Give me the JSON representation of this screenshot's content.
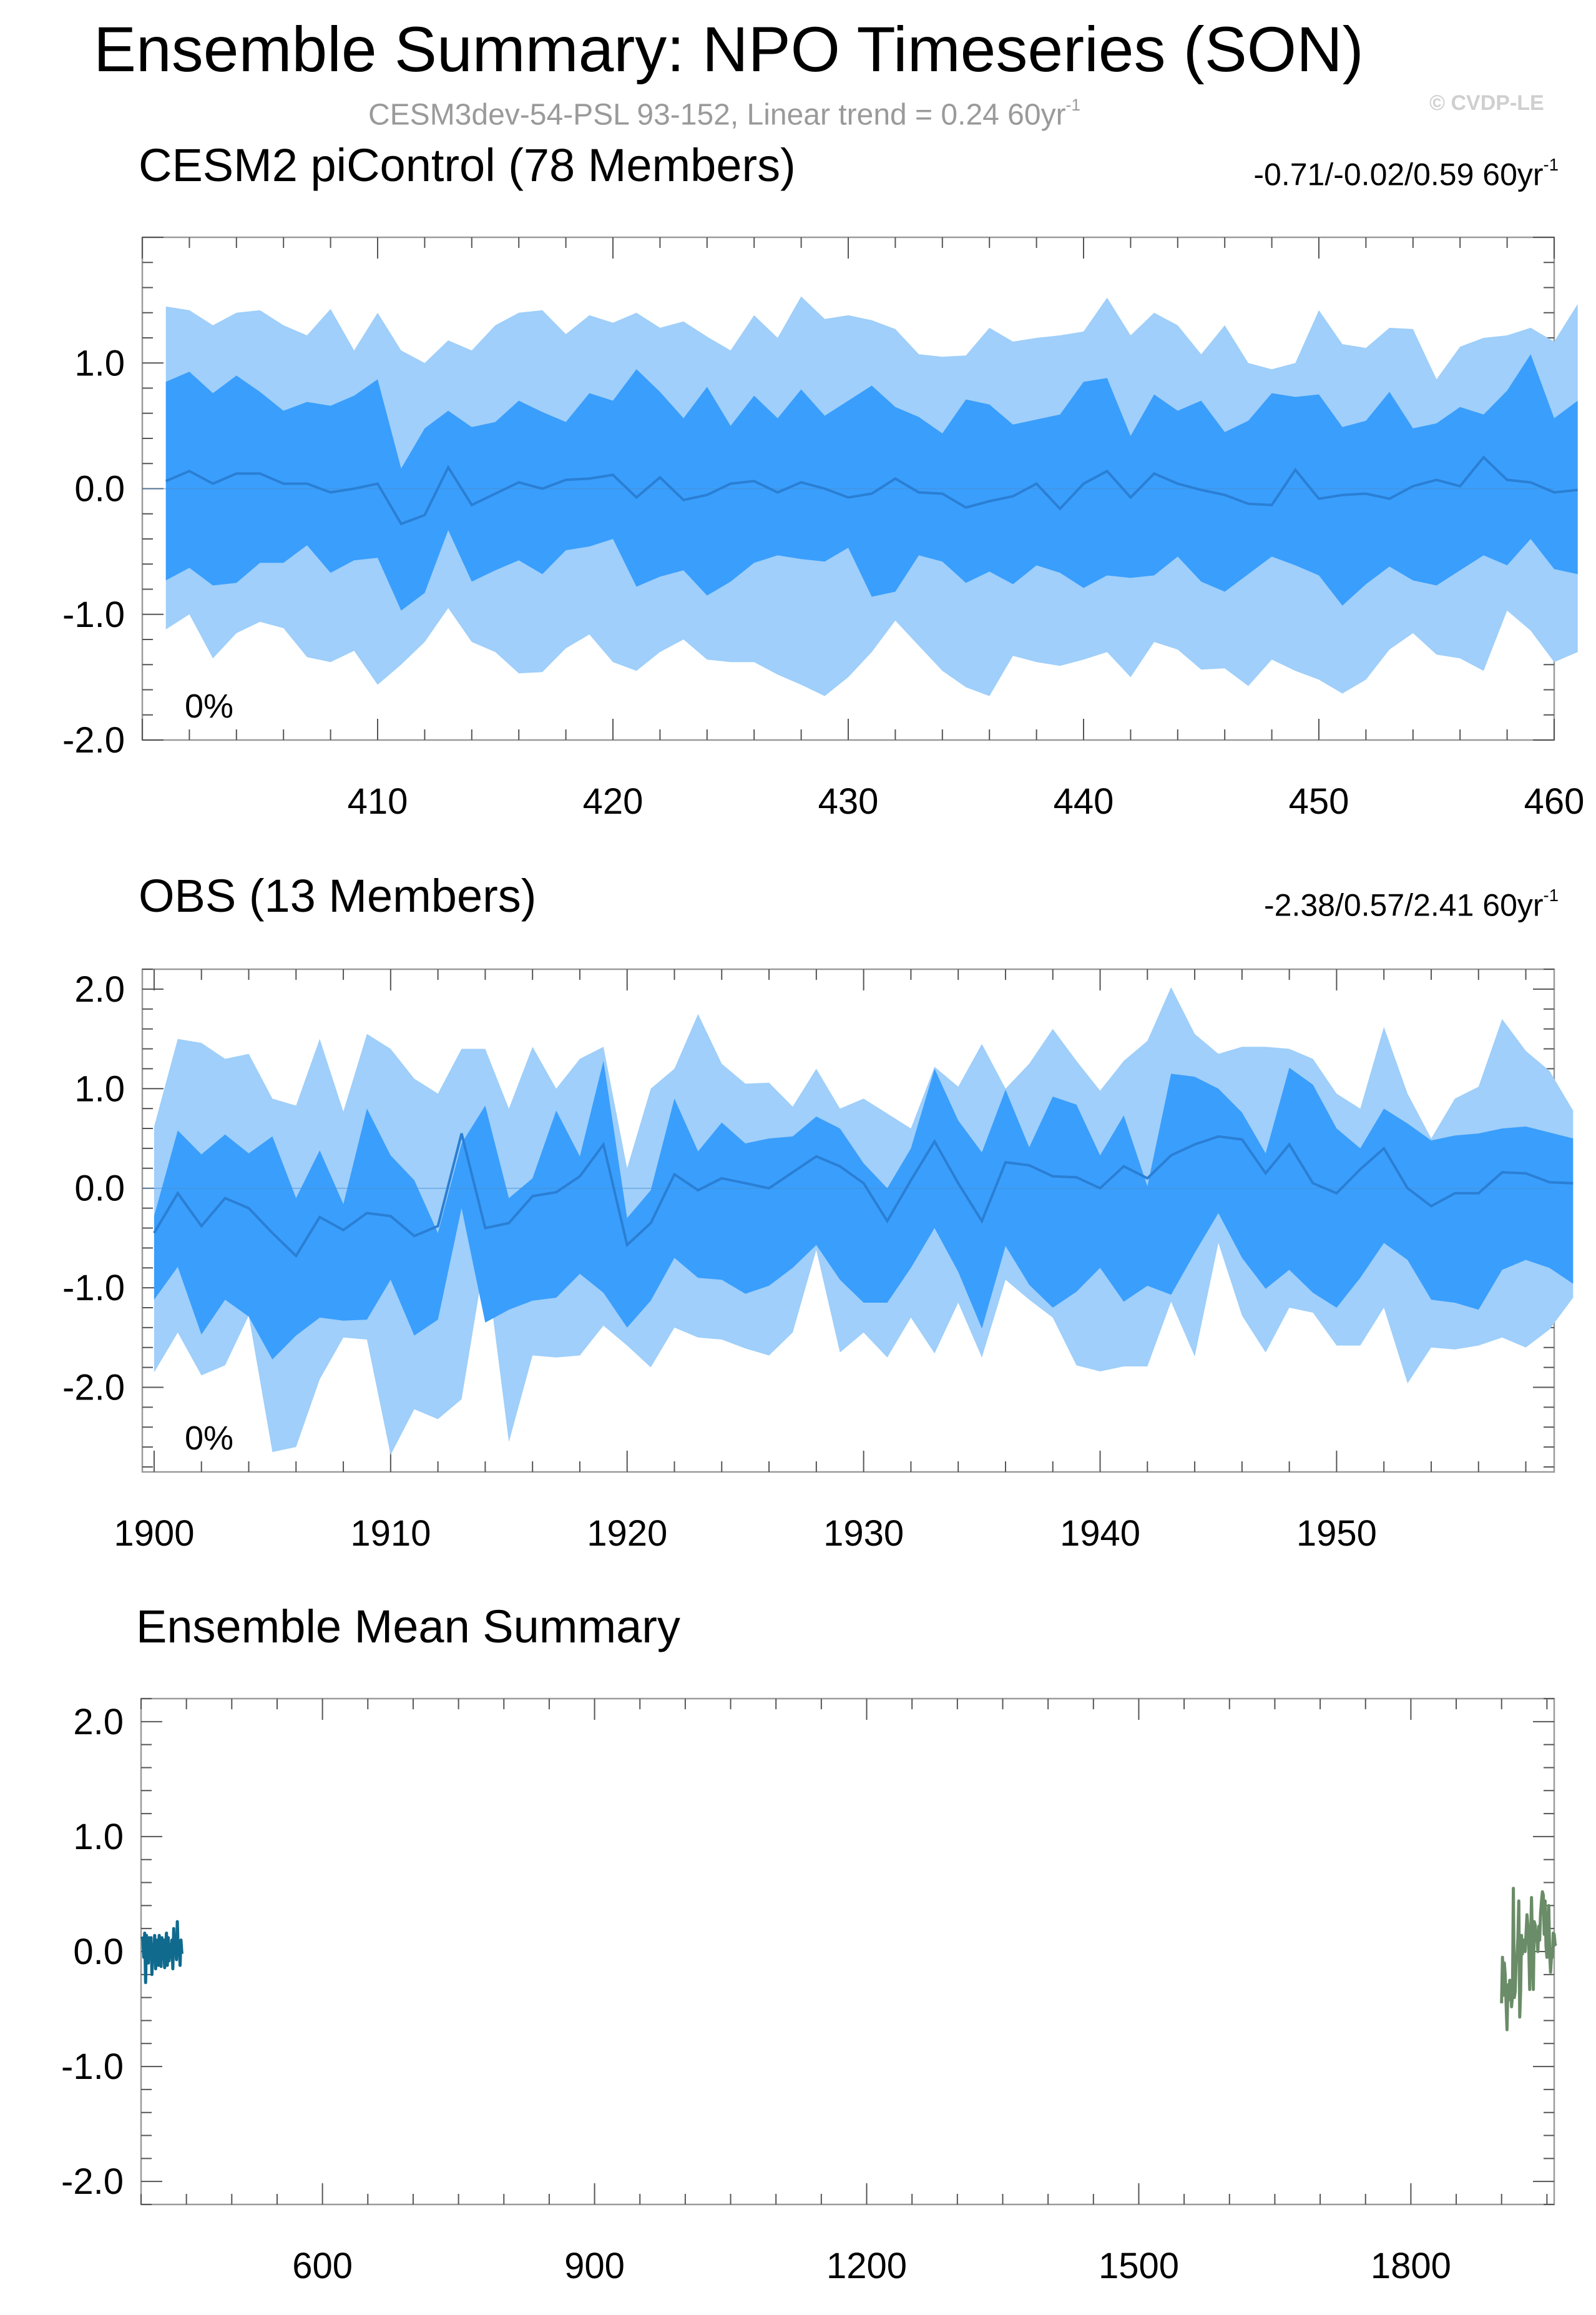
{
  "header": {
    "title": "Ensemble Summary: NPO Timeseries (SON)",
    "subtitle_main": "CESM3dev-54-PSL 93-152, Linear trend = 0.24 60yr",
    "subtitle_exp": "-1",
    "watermark": "© CVDP-LE"
  },
  "colors": {
    "outer_band": "#9fcffa",
    "inner_band": "#3a9efc",
    "median_line": "#2a7fd4",
    "cesm_series": "#0f6a8e",
    "obs_series": "#6a8c68",
    "frame": "#9a9a9a"
  },
  "chart_data": [
    {
      "id": "cesm2",
      "type": "area",
      "title": "CESM2 piControl (78 Members)",
      "title_color": "#0f6a8e",
      "stats_text": "-0.71/-0.02/0.59 60yr",
      "stats_exp": "-1",
      "percent_label": "0%",
      "xlim": [
        400,
        460
      ],
      "ylim": [
        -2.0,
        2.0
      ],
      "xticks": [
        410,
        420,
        430,
        440,
        450,
        460
      ],
      "yticks": [
        1.0,
        0.0,
        -1.0,
        -2.0
      ],
      "ytick_labels": [
        "1.0",
        "0.0",
        "-1.0",
        "-2.0"
      ],
      "x_start": 401,
      "outer_high": [
        1.45,
        1.42,
        1.3,
        1.4,
        1.42,
        1.3,
        1.22,
        1.43,
        1.1,
        1.4,
        1.1,
        1.0,
        1.18,
        1.1,
        1.3,
        1.4,
        1.42,
        1.23,
        1.38,
        1.32,
        1.4,
        1.28,
        1.33,
        1.21,
        1.1,
        1.38,
        1.2,
        1.53,
        1.35,
        1.38,
        1.34,
        1.27,
        1.07,
        1.05,
        1.06,
        1.28,
        1.17,
        1.2,
        1.22,
        1.25,
        1.52,
        1.22,
        1.4,
        1.3,
        1.07,
        1.3,
        1.0,
        0.95,
        1.0,
        1.42,
        1.15,
        1.12,
        1.28,
        1.27,
        0.87,
        1.13,
        1.2,
        1.22,
        1.28,
        1.17,
        1.47
      ],
      "inner_high": [
        0.85,
        0.93,
        0.76,
        0.9,
        0.77,
        0.62,
        0.69,
        0.66,
        0.74,
        0.87,
        0.16,
        0.48,
        0.62,
        0.49,
        0.53,
        0.7,
        0.61,
        0.53,
        0.76,
        0.7,
        0.95,
        0.77,
        0.56,
        0.81,
        0.5,
        0.74,
        0.56,
        0.79,
        0.58,
        0.7,
        0.82,
        0.65,
        0.57,
        0.44,
        0.71,
        0.67,
        0.51,
        0.55,
        0.59,
        0.85,
        0.88,
        0.42,
        0.75,
        0.62,
        0.7,
        0.45,
        0.54,
        0.76,
        0.73,
        0.75,
        0.49,
        0.54,
        0.77,
        0.48,
        0.52,
        0.65,
        0.59,
        0.78,
        1.07,
        0.56,
        0.7
      ],
      "median": [
        0.06,
        0.14,
        0.04,
        0.12,
        0.12,
        0.04,
        0.04,
        -0.03,
        0.0,
        0.04,
        -0.28,
        -0.21,
        0.17,
        -0.13,
        -0.04,
        0.05,
        0.0,
        0.07,
        0.08,
        0.11,
        -0.07,
        0.09,
        -0.09,
        -0.05,
        0.04,
        0.06,
        -0.03,
        0.05,
        0.0,
        -0.07,
        -0.04,
        0.08,
        -0.03,
        -0.04,
        -0.15,
        -0.1,
        -0.06,
        0.04,
        -0.16,
        0.04,
        0.14,
        -0.07,
        0.12,
        0.04,
        -0.01,
        -0.05,
        -0.12,
        -0.13,
        0.15,
        -0.08,
        -0.05,
        -0.04,
        -0.08,
        0.02,
        0.07,
        0.02,
        0.25,
        0.07,
        0.05,
        -0.03,
        -0.01
      ],
      "inner_low": [
        -0.73,
        -0.63,
        -0.77,
        -0.75,
        -0.59,
        -0.59,
        -0.45,
        -0.67,
        -0.57,
        -0.55,
        -0.97,
        -0.83,
        -0.33,
        -0.74,
        -0.65,
        -0.57,
        -0.68,
        -0.49,
        -0.46,
        -0.4,
        -0.78,
        -0.7,
        -0.65,
        -0.85,
        -0.74,
        -0.59,
        -0.53,
        -0.56,
        -0.58,
        -0.47,
        -0.86,
        -0.82,
        -0.53,
        -0.58,
        -0.75,
        -0.66,
        -0.76,
        -0.61,
        -0.67,
        -0.79,
        -0.69,
        -0.71,
        -0.69,
        -0.54,
        -0.74,
        -0.82,
        -0.68,
        -0.54,
        -0.61,
        -0.69,
        -0.93,
        -0.76,
        -0.62,
        -0.73,
        -0.77,
        -0.65,
        -0.53,
        -0.61,
        -0.4,
        -0.64,
        -0.68
      ],
      "outer_low": [
        -1.12,
        -1.0,
        -1.35,
        -1.15,
        -1.06,
        -1.11,
        -1.34,
        -1.38,
        -1.29,
        -1.56,
        -1.4,
        -1.22,
        -0.95,
        -1.22,
        -1.3,
        -1.47,
        -1.46,
        -1.27,
        -1.16,
        -1.38,
        -1.45,
        -1.3,
        -1.2,
        -1.36,
        -1.38,
        -1.38,
        -1.48,
        -1.56,
        -1.65,
        -1.5,
        -1.3,
        -1.05,
        -1.25,
        -1.45,
        -1.58,
        -1.65,
        -1.33,
        -1.38,
        -1.41,
        -1.36,
        -1.3,
        -1.5,
        -1.22,
        -1.28,
        -1.44,
        -1.43,
        -1.57,
        -1.36,
        -1.45,
        -1.52,
        -1.63,
        -1.52,
        -1.28,
        -1.15,
        -1.32,
        -1.35,
        -1.45,
        -0.97,
        -1.13,
        -1.38,
        -1.3
      ]
    },
    {
      "id": "obs",
      "type": "area",
      "title": "OBS (13 Members)",
      "title_color": "#6a8c68",
      "stats_text": "-2.38/0.57/2.41 60yr",
      "stats_exp": "-1",
      "percent_label": "0%",
      "xlim": [
        1899.5,
        1959.2
      ],
      "ylim": [
        -2.85,
        2.2
      ],
      "xticks": [
        1900,
        1910,
        1920,
        1930,
        1940,
        1950
      ],
      "yticks": [
        2.0,
        1.0,
        0.0,
        -1.0,
        -2.0
      ],
      "ytick_labels": [
        "2.0",
        "1.0",
        "0.0",
        "-1.0",
        "-2.0"
      ],
      "x_start": 1900,
      "outer_high": [
        0.62,
        1.5,
        1.46,
        1.3,
        1.35,
        0.9,
        0.83,
        1.5,
        0.77,
        1.55,
        1.4,
        1.1,
        0.95,
        1.4,
        1.4,
        0.8,
        1.42,
        1.0,
        1.3,
        1.42,
        0.2,
        1.0,
        1.2,
        1.75,
        1.25,
        1.05,
        1.06,
        0.82,
        1.2,
        0.8,
        0.9,
        0.75,
        0.6,
        1.22,
        1.02,
        1.45,
        1.0,
        1.25,
        1.6,
        1.28,
        0.98,
        1.28,
        1.48,
        2.02,
        1.55,
        1.35,
        1.42,
        1.42,
        1.4,
        1.3,
        0.95,
        0.8,
        1.62,
        0.95,
        0.5,
        0.9,
        1.02,
        1.7,
        1.38,
        1.18,
        0.78
      ],
      "inner_high": [
        -0.28,
        0.58,
        0.34,
        0.54,
        0.35,
        0.52,
        -0.1,
        0.38,
        -0.16,
        0.8,
        0.33,
        0.08,
        -0.45,
        0.45,
        0.83,
        -0.1,
        0.1,
        0.78,
        0.32,
        1.28,
        -0.3,
        -0.02,
        0.9,
        0.37,
        0.66,
        0.45,
        0.5,
        0.52,
        0.72,
        0.6,
        0.25,
        0.0,
        0.4,
        1.2,
        0.68,
        0.36,
        0.99,
        0.41,
        0.92,
        0.84,
        0.33,
        0.73,
        0.02,
        1.15,
        1.12,
        1.0,
        0.76,
        0.35,
        1.21,
        1.04,
        0.6,
        0.4,
        0.8,
        0.65,
        0.48,
        0.53,
        0.55,
        0.6,
        0.62,
        0.56,
        0.5
      ],
      "median": [
        -0.45,
        -0.05,
        -0.38,
        -0.1,
        -0.2,
        -0.45,
        -0.68,
        -0.29,
        -0.42,
        -0.25,
        -0.28,
        -0.48,
        -0.38,
        0.55,
        -0.4,
        -0.35,
        -0.08,
        -0.04,
        0.12,
        0.44,
        -0.57,
        -0.35,
        0.14,
        -0.02,
        0.1,
        0.05,
        0.0,
        0.16,
        0.32,
        0.22,
        0.05,
        -0.33,
        0.08,
        0.47,
        0.05,
        -0.33,
        0.26,
        0.23,
        0.12,
        0.11,
        0.0,
        0.22,
        0.1,
        0.33,
        0.44,
        0.52,
        0.49,
        0.15,
        0.44,
        0.05,
        -0.05,
        0.19,
        0.4,
        0.0,
        -0.18,
        -0.05,
        -0.05,
        0.16,
        0.15,
        0.06,
        0.05
      ],
      "inner_low": [
        -1.12,
        -0.79,
        -1.47,
        -1.12,
        -1.29,
        -1.72,
        -1.48,
        -1.3,
        -1.33,
        -1.32,
        -0.92,
        -1.48,
        -1.32,
        -0.2,
        -1.35,
        -1.22,
        -1.13,
        -1.1,
        -0.86,
        -1.05,
        -1.4,
        -1.13,
        -0.7,
        -0.9,
        -0.92,
        -1.06,
        -0.98,
        -0.8,
        -0.57,
        -0.92,
        -1.15,
        -1.15,
        -0.8,
        -0.4,
        -0.84,
        -1.41,
        -0.58,
        -0.97,
        -1.2,
        -1.04,
        -0.8,
        -1.14,
        -0.98,
        -1.07,
        -0.65,
        -0.25,
        -0.7,
        -1.01,
        -0.82,
        -1.05,
        -1.2,
        -0.9,
        -0.55,
        -0.72,
        -1.12,
        -1.15,
        -1.22,
        -0.82,
        -0.72,
        -0.8,
        -0.96
      ],
      "outer_low": [
        -1.85,
        -1.45,
        -1.88,
        -1.78,
        -1.28,
        -2.65,
        -2.6,
        -1.92,
        -1.5,
        -1.52,
        -2.68,
        -2.22,
        -2.32,
        -2.12,
        -0.68,
        -2.55,
        -1.68,
        -1.7,
        -1.68,
        -1.38,
        -1.58,
        -1.8,
        -1.4,
        -1.5,
        -1.52,
        -1.61,
        -1.68,
        -1.45,
        -0.62,
        -1.65,
        -1.45,
        -1.7,
        -1.3,
        -1.66,
        -1.15,
        -1.7,
        -0.92,
        -1.12,
        -1.3,
        -1.78,
        -1.84,
        -1.79,
        -1.79,
        -1.14,
        -1.69,
        -0.55,
        -1.28,
        -1.65,
        -1.2,
        -1.25,
        -1.58,
        -1.58,
        -1.2,
        -1.96,
        -1.6,
        -1.62,
        -1.58,
        -1.5,
        -1.6,
        -1.42,
        -1.1
      ]
    },
    {
      "id": "ensemble-mean",
      "type": "line",
      "title": "Ensemble Mean Summary",
      "xlim": [
        400,
        1958
      ],
      "ylim": [
        -2.2,
        2.2
      ],
      "xticks": [
        600,
        900,
        1200,
        1500,
        1800
      ],
      "yticks": [
        2.0,
        1.0,
        0.0,
        -1.0,
        -2.0
      ],
      "ytick_labels": [
        "2.0",
        "1.0",
        "0.0",
        "-1.0",
        "-2.0"
      ],
      "series": [
        {
          "x_start": 401,
          "color": "#0f6a8e",
          "values": [
            0.13,
            0.1,
            -0.05,
            0.16,
            -0.27,
            0.14,
            0.0,
            -0.1,
            0.12,
            0.0,
            0.12,
            -0.2,
            0.06,
            -0.08,
            0.14,
            -0.15,
            0.0,
            0.1,
            -0.12,
            0.14,
            0.0,
            -0.13,
            0.12,
            -0.04,
            0.1,
            -0.14,
            0.02,
            0.16,
            -0.12,
            0.12,
            -0.08,
            0.06,
            -0.05,
            0.1,
            -0.15,
            0.2,
            -0.02,
            0.08,
            -0.07,
            0.26,
            -0.03,
            0.06,
            -0.12,
            0.1,
            -0.02
          ]
        },
        {
          "x_start": 1900,
          "color": "#6a8c68",
          "values": [
            -0.45,
            -0.05,
            -0.38,
            -0.1,
            -0.2,
            -0.45,
            -0.68,
            -0.29,
            -0.42,
            -0.25,
            -0.28,
            -0.48,
            -0.38,
            0.55,
            -0.4,
            -0.35,
            -0.08,
            -0.04,
            0.12,
            0.44,
            -0.57,
            -0.35,
            0.14,
            -0.02,
            0.1,
            0.05,
            0.0,
            0.16,
            0.32,
            0.22,
            0.05,
            -0.33,
            0.08,
            0.47,
            0.05,
            -0.33,
            0.26,
            0.23,
            0.12,
            0.11,
            0.0,
            0.22,
            0.1,
            0.33,
            0.44,
            0.52,
            0.49,
            0.15,
            0.44,
            0.05,
            -0.05,
            0.19,
            0.4,
            0.0,
            -0.18,
            -0.05,
            -0.05,
            0.16,
            0.15,
            0.06,
            0.05
          ]
        }
      ]
    }
  ]
}
